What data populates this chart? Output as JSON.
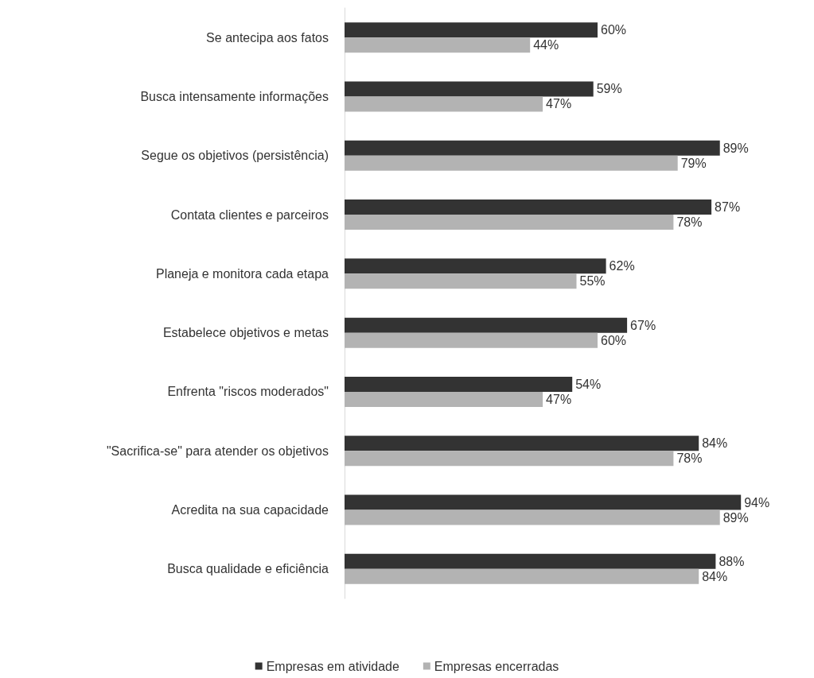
{
  "chart_data": {
    "type": "bar",
    "orientation": "horizontal",
    "categories": [
      "Se antecipa aos fatos",
      "Busca intensamente informações",
      "Segue os objetivos (persistência)",
      "Contata clientes e parceiros",
      "Planeja e monitora cada etapa",
      "Estabelece objetivos e metas",
      "Enfrenta \"riscos moderados\"",
      "\"Sacrifica-se\" para atender os objetivos",
      "Acredita na sua capacidade",
      "Busca qualidade e eficiência"
    ],
    "series": [
      {
        "name": "Empresas em atividade",
        "color": "#333333",
        "values": [
          60,
          59,
          89,
          87,
          62,
          67,
          54,
          84,
          94,
          88
        ],
        "value_labels": [
          "60%",
          "59%",
          "89%",
          "87%",
          "62%",
          "67%",
          "54%",
          "84%",
          "94%",
          "88%"
        ]
      },
      {
        "name": "Empresas encerradas",
        "color": "#b3b3b3",
        "values": [
          44,
          47,
          79,
          78,
          55,
          60,
          47,
          78,
          89,
          84
        ],
        "value_labels": [
          "44%",
          "47%",
          "79%",
          "78%",
          "55%",
          "60%",
          "47%",
          "78%",
          "89%",
          "84%"
        ]
      }
    ],
    "grid": false,
    "legend": "bottom"
  }
}
